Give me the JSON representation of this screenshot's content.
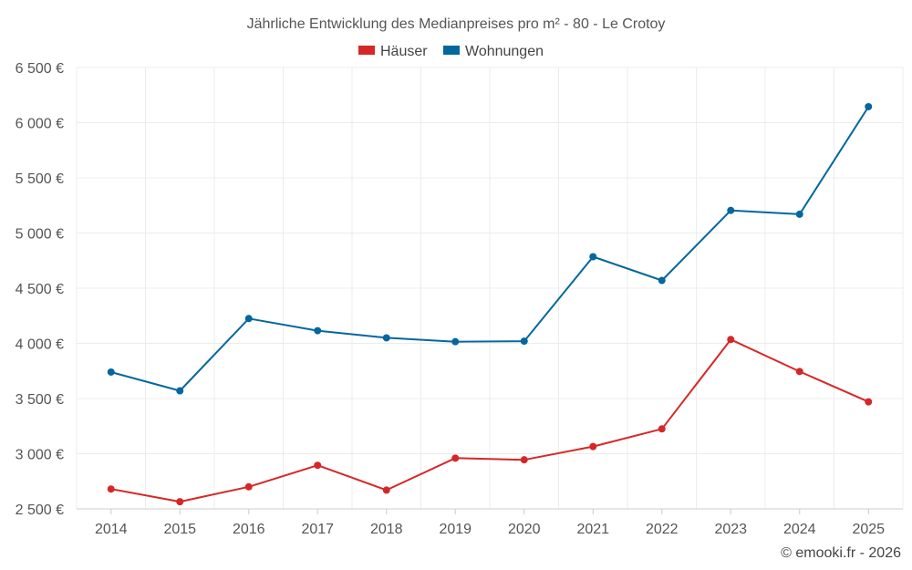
{
  "chart_data": {
    "type": "line",
    "title": "Jährliche Entwicklung des Medianpreises pro m² - 80 - Le Crotoy",
    "categories": [
      "2014",
      "2015",
      "2016",
      "2017",
      "2018",
      "2019",
      "2020",
      "2021",
      "2022",
      "2023",
      "2024",
      "2025"
    ],
    "series": [
      {
        "name": "Häuser",
        "color": "#d62728",
        "values": [
          2680,
          2565,
          2700,
          2895,
          2670,
          2960,
          2945,
          3065,
          3225,
          4035,
          3745,
          3470
        ]
      },
      {
        "name": "Wohnungen",
        "color": "#04679e",
        "values": [
          3740,
          3570,
          4225,
          4115,
          4050,
          4015,
          4020,
          4785,
          4570,
          5205,
          5170,
          6145
        ]
      }
    ],
    "ylim": [
      2500,
      6500
    ],
    "yticks": [
      2500,
      3000,
      3500,
      4000,
      4500,
      5000,
      5500,
      6000,
      6500
    ],
    "ytick_labels": [
      "2 500 €",
      "3 000 €",
      "3 500 €",
      "4 000 €",
      "4 500 €",
      "5 000 €",
      "5 500 €",
      "6 000 €",
      "6 500 €"
    ],
    "grid": true,
    "legend_position": "top-center"
  },
  "credit": "© emooki.fr - 2026"
}
